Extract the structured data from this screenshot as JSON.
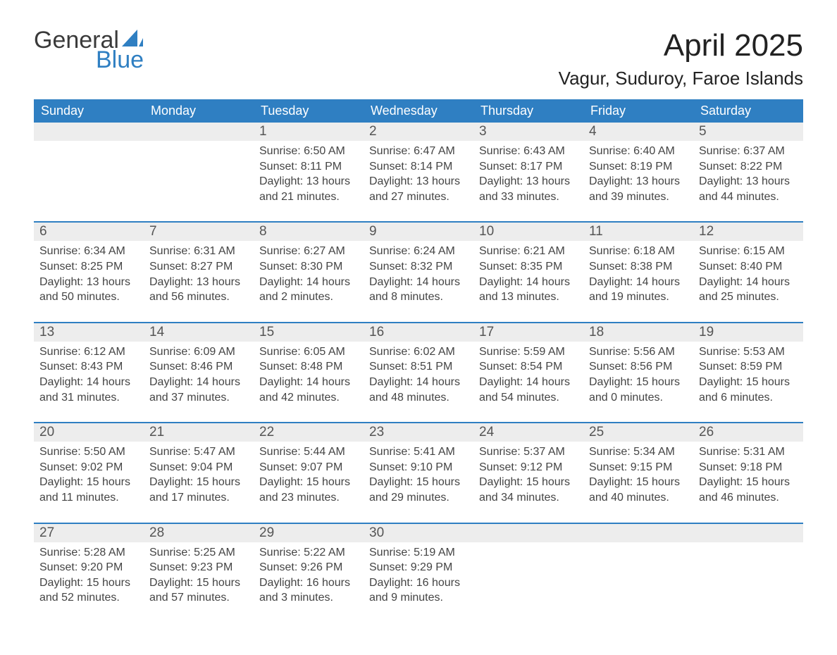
{
  "brand": {
    "word1": "General",
    "word2": "Blue"
  },
  "title": "April 2025",
  "location": "Vagur, Suduroy, Faroe Islands",
  "colors": {
    "brand_blue": "#2f7fc2",
    "row_bg": "#ededed",
    "text_dark": "#333333",
    "white": "#ffffff"
  },
  "dow": [
    "Sunday",
    "Monday",
    "Tuesday",
    "Wednesday",
    "Thursday",
    "Friday",
    "Saturday"
  ],
  "weeks": [
    [
      null,
      null,
      {
        "n": "1",
        "sr": "6:50 AM",
        "ss": "8:11 PM",
        "dl": "13 hours and 21 minutes."
      },
      {
        "n": "2",
        "sr": "6:47 AM",
        "ss": "8:14 PM",
        "dl": "13 hours and 27 minutes."
      },
      {
        "n": "3",
        "sr": "6:43 AM",
        "ss": "8:17 PM",
        "dl": "13 hours and 33 minutes."
      },
      {
        "n": "4",
        "sr": "6:40 AM",
        "ss": "8:19 PM",
        "dl": "13 hours and 39 minutes."
      },
      {
        "n": "5",
        "sr": "6:37 AM",
        "ss": "8:22 PM",
        "dl": "13 hours and 44 minutes."
      }
    ],
    [
      {
        "n": "6",
        "sr": "6:34 AM",
        "ss": "8:25 PM",
        "dl": "13 hours and 50 minutes."
      },
      {
        "n": "7",
        "sr": "6:31 AM",
        "ss": "8:27 PM",
        "dl": "13 hours and 56 minutes."
      },
      {
        "n": "8",
        "sr": "6:27 AM",
        "ss": "8:30 PM",
        "dl": "14 hours and 2 minutes."
      },
      {
        "n": "9",
        "sr": "6:24 AM",
        "ss": "8:32 PM",
        "dl": "14 hours and 8 minutes."
      },
      {
        "n": "10",
        "sr": "6:21 AM",
        "ss": "8:35 PM",
        "dl": "14 hours and 13 minutes."
      },
      {
        "n": "11",
        "sr": "6:18 AM",
        "ss": "8:38 PM",
        "dl": "14 hours and 19 minutes."
      },
      {
        "n": "12",
        "sr": "6:15 AM",
        "ss": "8:40 PM",
        "dl": "14 hours and 25 minutes."
      }
    ],
    [
      {
        "n": "13",
        "sr": "6:12 AM",
        "ss": "8:43 PM",
        "dl": "14 hours and 31 minutes."
      },
      {
        "n": "14",
        "sr": "6:09 AM",
        "ss": "8:46 PM",
        "dl": "14 hours and 37 minutes."
      },
      {
        "n": "15",
        "sr": "6:05 AM",
        "ss": "8:48 PM",
        "dl": "14 hours and 42 minutes."
      },
      {
        "n": "16",
        "sr": "6:02 AM",
        "ss": "8:51 PM",
        "dl": "14 hours and 48 minutes."
      },
      {
        "n": "17",
        "sr": "5:59 AM",
        "ss": "8:54 PM",
        "dl": "14 hours and 54 minutes."
      },
      {
        "n": "18",
        "sr": "5:56 AM",
        "ss": "8:56 PM",
        "dl": "15 hours and 0 minutes."
      },
      {
        "n": "19",
        "sr": "5:53 AM",
        "ss": "8:59 PM",
        "dl": "15 hours and 6 minutes."
      }
    ],
    [
      {
        "n": "20",
        "sr": "5:50 AM",
        "ss": "9:02 PM",
        "dl": "15 hours and 11 minutes."
      },
      {
        "n": "21",
        "sr": "5:47 AM",
        "ss": "9:04 PM",
        "dl": "15 hours and 17 minutes."
      },
      {
        "n": "22",
        "sr": "5:44 AM",
        "ss": "9:07 PM",
        "dl": "15 hours and 23 minutes."
      },
      {
        "n": "23",
        "sr": "5:41 AM",
        "ss": "9:10 PM",
        "dl": "15 hours and 29 minutes."
      },
      {
        "n": "24",
        "sr": "5:37 AM",
        "ss": "9:12 PM",
        "dl": "15 hours and 34 minutes."
      },
      {
        "n": "25",
        "sr": "5:34 AM",
        "ss": "9:15 PM",
        "dl": "15 hours and 40 minutes."
      },
      {
        "n": "26",
        "sr": "5:31 AM",
        "ss": "9:18 PM",
        "dl": "15 hours and 46 minutes."
      }
    ],
    [
      {
        "n": "27",
        "sr": "5:28 AM",
        "ss": "9:20 PM",
        "dl": "15 hours and 52 minutes."
      },
      {
        "n": "28",
        "sr": "5:25 AM",
        "ss": "9:23 PM",
        "dl": "15 hours and 57 minutes."
      },
      {
        "n": "29",
        "sr": "5:22 AM",
        "ss": "9:26 PM",
        "dl": "16 hours and 3 minutes."
      },
      {
        "n": "30",
        "sr": "5:19 AM",
        "ss": "9:29 PM",
        "dl": "16 hours and 9 minutes."
      },
      null,
      null,
      null
    ]
  ],
  "labels": {
    "sunrise": "Sunrise: ",
    "sunset": "Sunset: ",
    "daylight": "Daylight: "
  }
}
